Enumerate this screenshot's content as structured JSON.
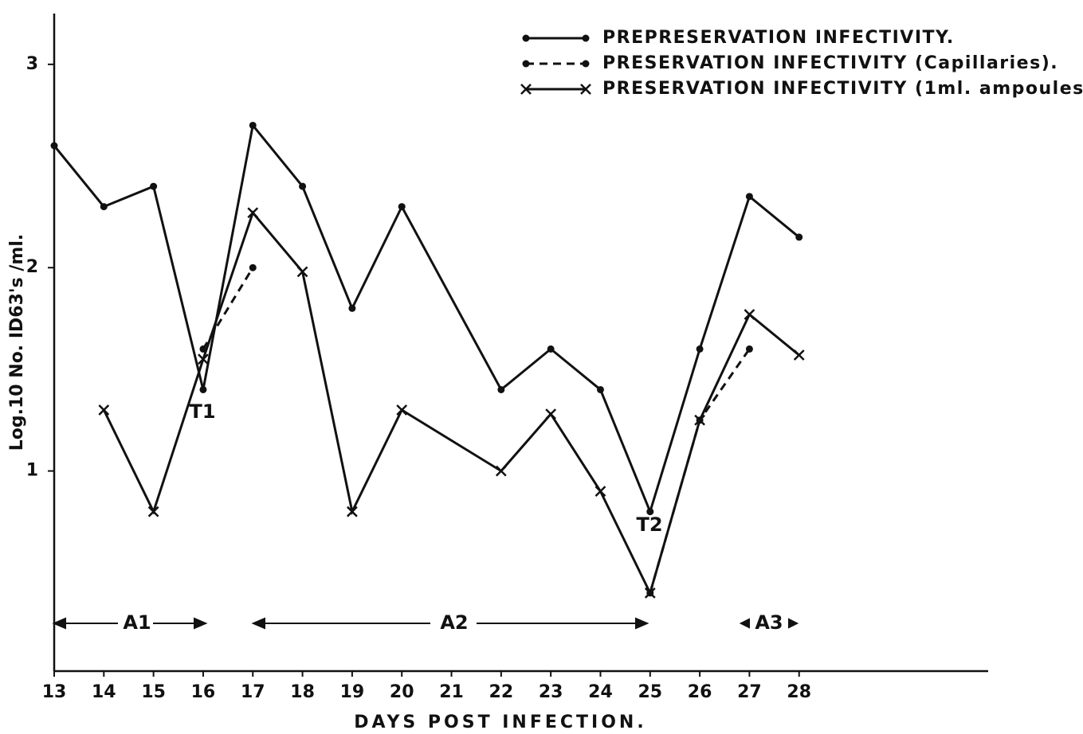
{
  "chart_data": {
    "type": "line",
    "x_label": "DAYS POST INFECTION.",
    "y_label": "Log.10 No. ID63's /ml.",
    "xlim": [
      13,
      32
    ],
    "ylim": [
      0,
      3.25
    ],
    "xticks": [
      13,
      14,
      15,
      16,
      17,
      18,
      19,
      20,
      21,
      22,
      23,
      24,
      25,
      26,
      27,
      28
    ],
    "yticks": [
      1,
      2,
      3
    ],
    "grid": false,
    "legend": "upper right",
    "series": [
      {
        "name": "PREPRESERVATION INFECTIVITY.",
        "color": "#111111",
        "line_style": "solid",
        "marker": "dot",
        "x": [
          13,
          14,
          15,
          16,
          17,
          18,
          19,
          20,
          22,
          23,
          24,
          25,
          26,
          27,
          28
        ],
        "values": [
          2.6,
          2.3,
          2.4,
          1.4,
          2.7,
          2.4,
          1.8,
          2.3,
          1.4,
          1.6,
          1.4,
          0.8,
          1.6,
          2.35,
          2.15
        ]
      },
      {
        "name": "PRESERVATION INFECTIVITY (Capillaries).",
        "color": "#111111",
        "line_style": "dashed",
        "marker": "dot",
        "x": [
          16,
          17,
          null,
          25,
          26,
          27
        ],
        "values": [
          1.6,
          2.0,
          null,
          0.4,
          1.25,
          1.6
        ]
      },
      {
        "name": "PRESERVATION INFECTIVITY (1ml. ampoules).",
        "color": "#111111",
        "line_style": "solid",
        "marker": "x",
        "x": [
          14,
          15,
          16,
          17,
          18,
          19,
          20,
          22,
          23,
          24,
          25,
          26,
          27,
          28
        ],
        "values": [
          1.3,
          0.8,
          1.55,
          2.27,
          1.98,
          0.8,
          1.3,
          1.0,
          1.28,
          0.9,
          0.4,
          1.25,
          1.77,
          1.57
        ]
      }
    ],
    "annotations": [
      "T1",
      "T2",
      "A1",
      "A2",
      "A3"
    ]
  }
}
